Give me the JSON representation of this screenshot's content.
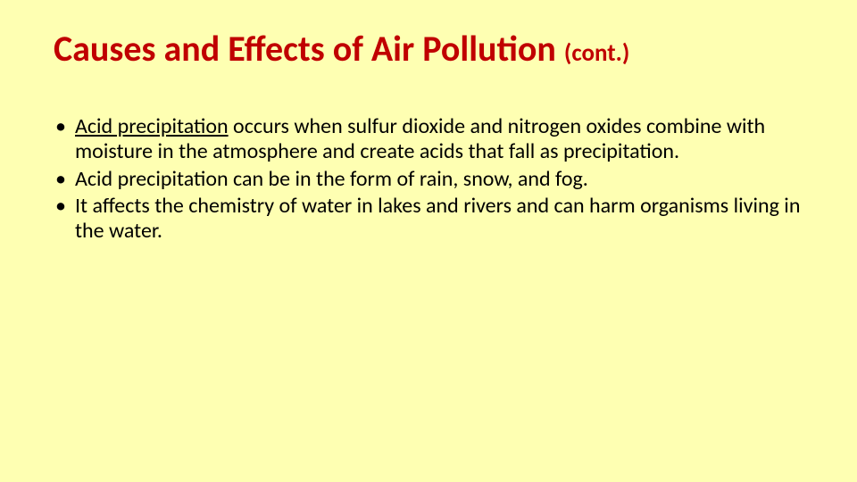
{
  "slide": {
    "background_color": "#feffb2",
    "title": {
      "main": "Causes and Effects of Air Pollution ",
      "suffix": "(cont.)",
      "color": "#c00000",
      "main_fontsize": 40,
      "suffix_fontsize": 27,
      "font_weight": 700
    },
    "body": {
      "bullet_color": "#000000",
      "text_color": "#000000",
      "fontsize": 24,
      "items": [
        {
          "term": "Acid precipitation",
          "rest": " occurs when sulfur dioxide and nitrogen oxides combine with moisture in the atmosphere and create acids that fall as precipitation."
        },
        {
          "rest": "Acid precipitation can be in the form of rain, snow, and fog."
        },
        {
          "rest": "It affects the chemistry of water in lakes and rivers and can harm organisms living in the water."
        }
      ]
    }
  }
}
